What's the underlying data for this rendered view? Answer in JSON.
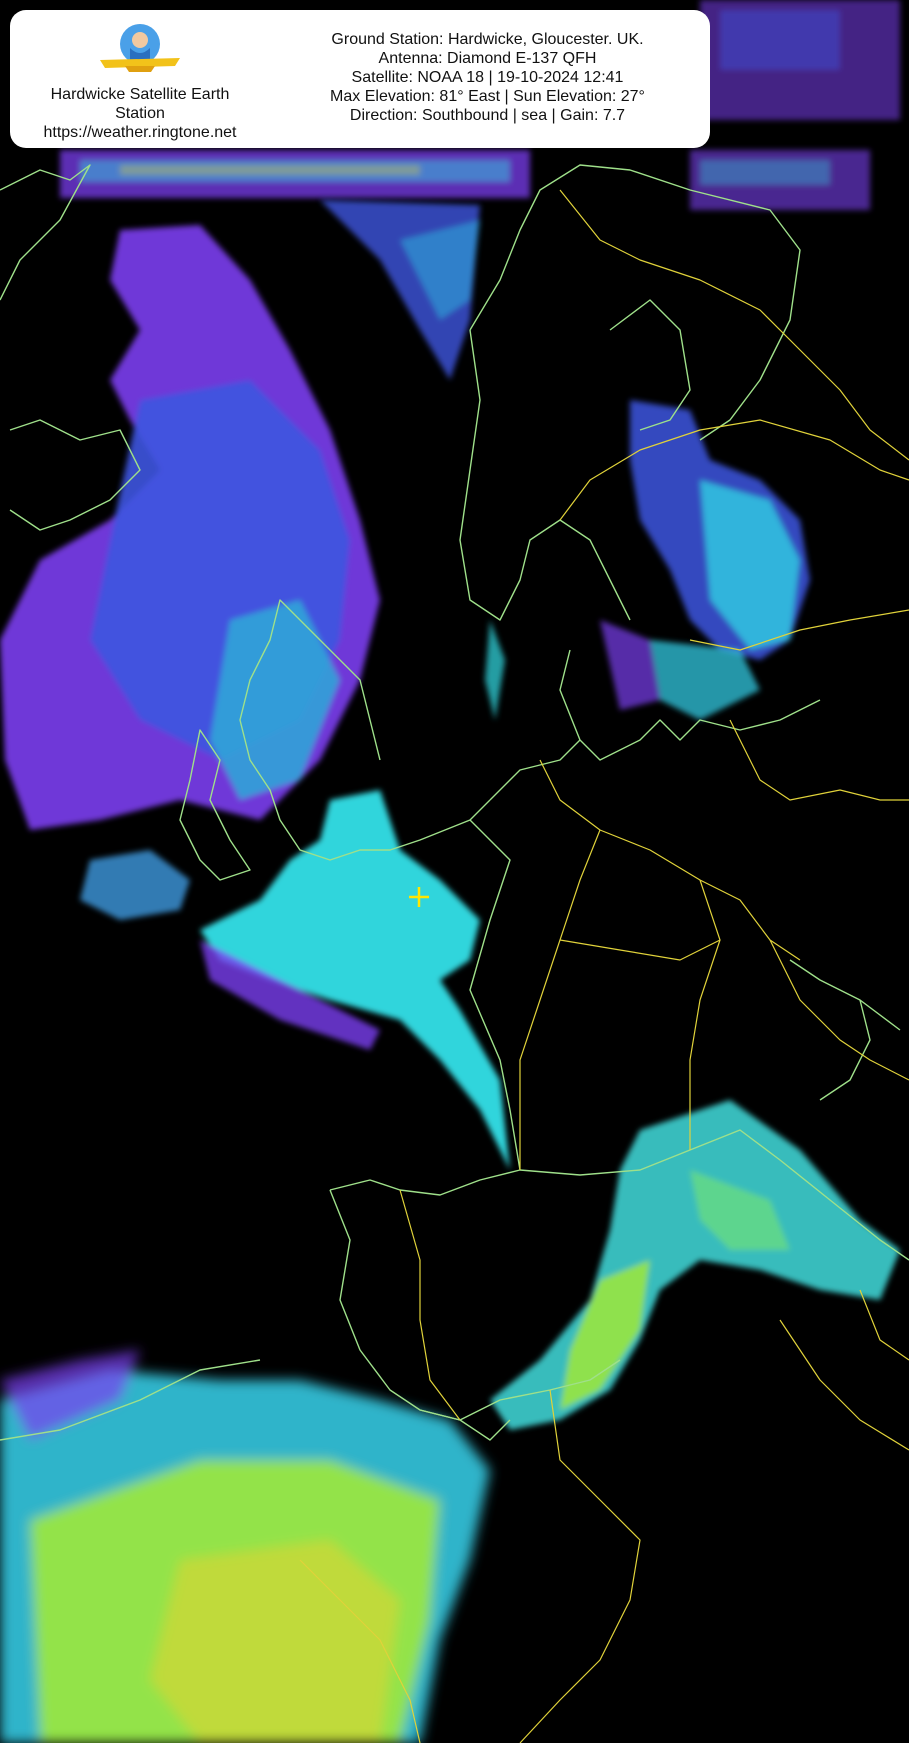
{
  "station": {
    "name_line1": "Hardwicke Satellite Earth",
    "name_line2": "Station",
    "url": "https://weather.ringtone.net"
  },
  "pass_info": {
    "ground_station": "Ground Station: Hardwicke, Gloucester. UK.",
    "antenna": "Antenna: Diamond E-137 QFH",
    "satellite": "Satellite: NOAA 18 | 19-10-2024 12:41",
    "elevation": "Max Elevation: 81° East | Sun Elevation: 27°",
    "direction": "Direction: Southbound | sea | Gain: 7.7"
  },
  "colors": {
    "background": "#000000",
    "coastline": "#9fe08a",
    "border": "#e0d23a",
    "marker": "#ffe600",
    "cloud_purple": "#7b3ff0",
    "cloud_blue": "#3d55e0",
    "cloud_cyan": "#33e0e8",
    "cloud_green": "#9fe83a",
    "cloud_yellow": "#e6d23a"
  },
  "marker": {
    "icon": "plus-icon"
  }
}
